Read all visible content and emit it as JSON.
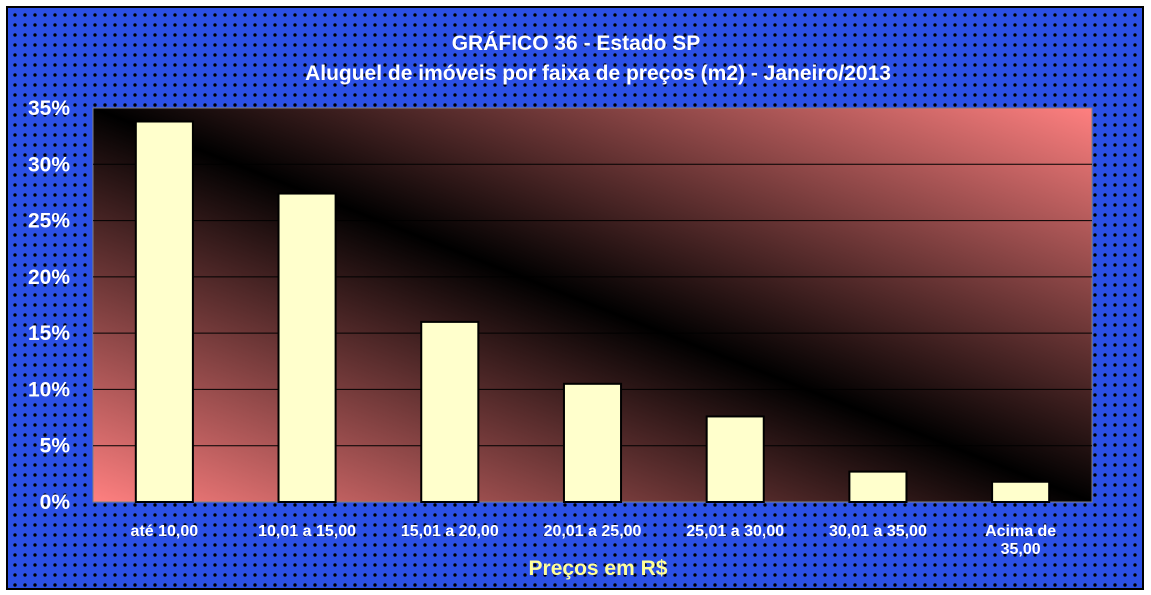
{
  "chart_data": {
    "type": "bar",
    "title": "GRÁFICO 36 - Estado SP",
    "subtitle": "Aluguel de imóveis por faixa de preços (m2) -  Janeiro/2013",
    "xlabel": "Preços em R$",
    "ylabel": "",
    "categories": [
      [
        "até 10,00"
      ],
      [
        "10,01 a 15,00"
      ],
      [
        "15,01 a 20,00"
      ],
      [
        "20,01 a 25,00"
      ],
      [
        "25,01 a 30,00"
      ],
      [
        "30,01 a 35,00"
      ],
      [
        "Acima de",
        "35,00"
      ]
    ],
    "values": [
      33.8,
      27.4,
      16.0,
      10.5,
      7.6,
      2.7,
      1.8
    ],
    "ylim": [
      0,
      35
    ],
    "yticks": [
      "0%",
      "5%",
      "10%",
      "15%",
      "20%",
      "25%",
      "30%",
      "35%"
    ],
    "ytick_values": [
      0,
      5,
      10,
      15,
      20,
      25,
      30,
      35
    ],
    "grid": true,
    "legend": "none",
    "colors": {
      "bar_fill": "#ffffcc",
      "bar_stroke": "#000000",
      "plot_gradient_light": "#ff8080",
      "plot_gradient_dark": "#000000",
      "background": "#2b50e6",
      "text": "#ffffff",
      "xlabel_color": "#ffff99"
    }
  }
}
